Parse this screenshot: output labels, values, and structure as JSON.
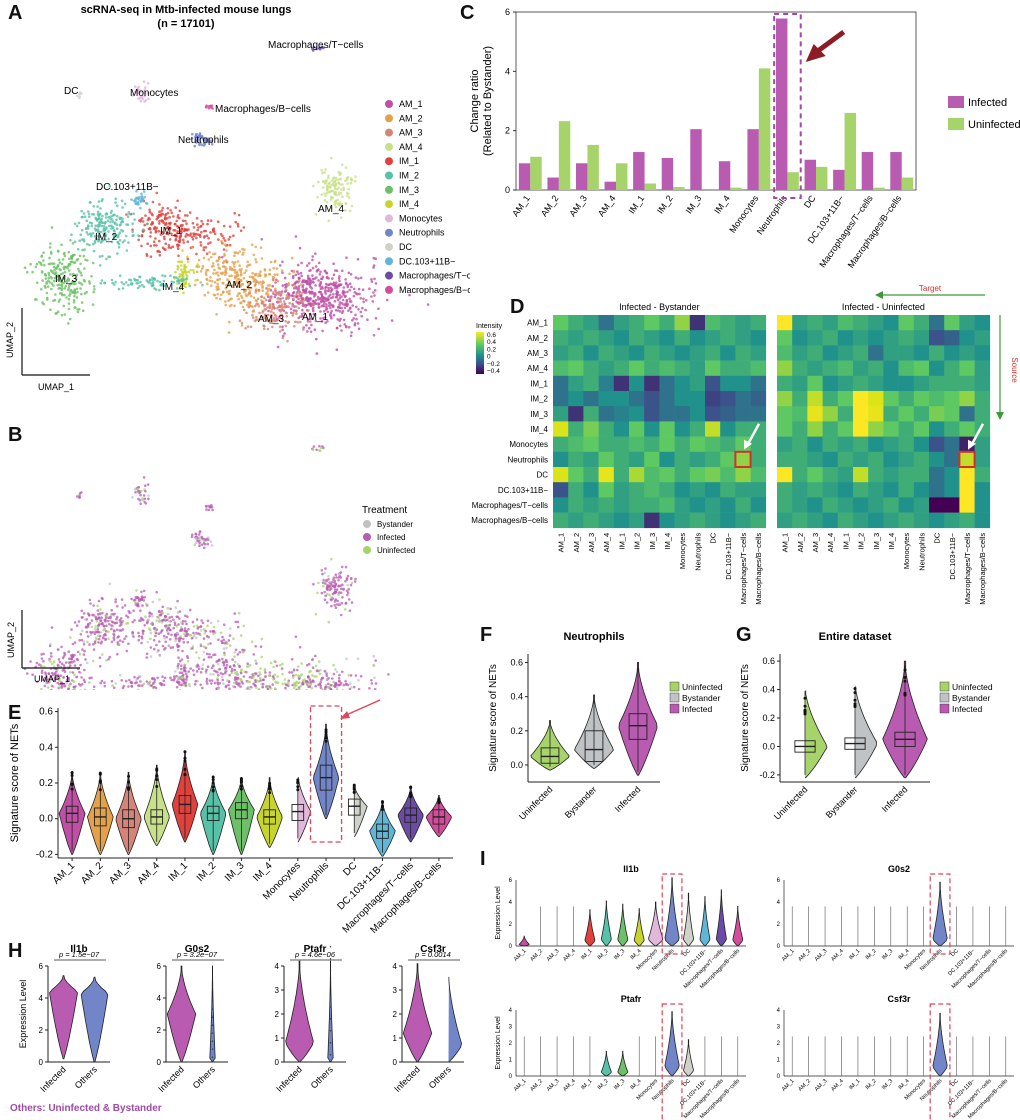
{
  "colors": {
    "AM_1": "#c04fa5",
    "AM_2": "#e5a14a",
    "AM_3": "#d68478",
    "AM_4": "#c9e08a",
    "IM_1": "#e0413c",
    "IM_2": "#57c2a7",
    "IM_3": "#6dc067",
    "IM_4": "#c6d42c",
    "Monocytes": "#e1b7db",
    "Neutrophils": "#7285c9",
    "DC": "#cfd2c9",
    "DC.103+11B-": "#5fb6d6",
    "Macrophages/T-cells": "#6b4ba6",
    "Macrophages/B-cells": "#d64c9c",
    "Infected": "#b85bb1",
    "Uninfected": "#a7d36b",
    "Bystander": "#bfc3c6",
    "highlight": "#e2455a",
    "arrow": "#8e1c26"
  },
  "panelA": {
    "label": "A",
    "title1": "scRNA-seq in Mtb-infected mouse lungs",
    "title2": "(n = 17101)",
    "xlabel": "UMAP_1",
    "ylabel": "UMAP_2",
    "cluster_labels": [
      "Macrophages/T−cells",
      "DC",
      "Monocytes",
      "Macrophages/B−cells",
      "Neutrophils",
      "DC.103+11B−",
      "AM_4",
      "IM_2",
      "IM_1",
      "IM_3",
      "IM_4",
      "AM_2",
      "AM_3",
      "AM_1"
    ],
    "legend": [
      "AM_1",
      "AM_2",
      "AM_3",
      "AM_4",
      "IM_1",
      "IM_2",
      "IM_3",
      "IM_4",
      "Monocytes",
      "Neutrophils",
      "DC",
      "DC.103+11B−",
      "Macrophages/T−cells",
      "Macrophages/B−cells"
    ]
  },
  "panelB": {
    "label": "B",
    "xlabel": "UMAP_1",
    "ylabel": "UMAP_2",
    "legend_title": "Treatment",
    "legend": [
      "Bystander",
      "Infected",
      "Uninfected"
    ]
  },
  "chart_data": [
    {
      "id": "C",
      "type": "bar",
      "ylabel": "Change ratio (Related to Bystander)",
      "ylabel1": "Change ratio",
      "ylabel2": "(Related to Bystander)",
      "ylim": [
        0,
        6
      ],
      "yticks": [
        0,
        2,
        4,
        6
      ],
      "categories": [
        "AM_1",
        "AM_2",
        "AM_3",
        "AM_4",
        "IM_1",
        "IM_2",
        "IM_3",
        "IM_4",
        "Monocytes",
        "Neutrophils",
        "DC",
        "DC.103+11B−",
        "Macrophages/T−cells",
        "Macrophages/B−cells"
      ],
      "series": [
        {
          "name": "Infected",
          "values": [
            0.9,
            0.42,
            0.9,
            0.28,
            1.28,
            1.08,
            2.05,
            0.97,
            2.05,
            5.78,
            1.02,
            0.68,
            1.28,
            1.28
          ]
        },
        {
          "name": "Uninfected",
          "values": [
            1.12,
            2.32,
            1.52,
            0.9,
            0.22,
            0.1,
            0.0,
            0.08,
            4.1,
            0.6,
            0.78,
            2.6,
            0.08,
            0.42
          ]
        }
      ],
      "highlight": "Neutrophils"
    },
    {
      "id": "D",
      "type": "heatmap",
      "subtitles": [
        "Infected - Bystander",
        "Infected - Uninfected"
      ],
      "legend_title": "Intensity",
      "legend_ticks": [
        "0.6",
        "0.4",
        "0.2",
        "0",
        "−0.2",
        "−0.4"
      ],
      "target_label": "Target",
      "source_label": "Source",
      "rows": [
        "AM_1",
        "AM_2",
        "AM_3",
        "AM_4",
        "IM_1",
        "IM_2",
        "IM_3",
        "IM_4",
        "Monocytes",
        "Neutrophils",
        "DC",
        "DC.103+11B−",
        "Macrophages/T−cells",
        "Macrophages/B−cells"
      ],
      "cols": [
        "AM_1",
        "AM_2",
        "AM_3",
        "AM_4",
        "IM_1",
        "IM_2",
        "IM_3",
        "IM_4",
        "Monocytes",
        "Neutrophils",
        "DC",
        "DC.103+11B−",
        "Macrophages/T−cells",
        "Macrophages/B−cells"
      ],
      "matrices": [
        [
          [
            0.2,
            0.1,
            0.05,
            -0.1,
            0.05,
            0.1,
            0.2,
            0.1,
            0.3,
            -0.3,
            0.15,
            0.1,
            0.05,
            0.1
          ],
          [
            0.1,
            0.05,
            0.1,
            0.05,
            0.0,
            0.1,
            0.05,
            0.0,
            0.1,
            0.0,
            0.05,
            0.1,
            0.05,
            0.0
          ],
          [
            0.05,
            0.1,
            0.0,
            0.1,
            0.05,
            0.0,
            0.1,
            0.05,
            0.0,
            0.05,
            0.1,
            0.0,
            0.1,
            0.05
          ],
          [
            0.15,
            0.2,
            0.1,
            0.05,
            0.1,
            0.2,
            0.1,
            0.15,
            0.1,
            0.05,
            0.2,
            0.1,
            0.1,
            0.15
          ],
          [
            -0.1,
            0.05,
            0.1,
            -0.05,
            -0.3,
            0.0,
            -0.3,
            -0.1,
            0.0,
            0.05,
            -0.2,
            0.0,
            0.0,
            -0.1
          ],
          [
            -0.1,
            0.0,
            -0.1,
            0.0,
            0.0,
            -0.1,
            -0.2,
            -0.1,
            0.0,
            0.0,
            -0.25,
            -0.2,
            -0.1,
            -0.15
          ],
          [
            0.05,
            -0.3,
            0.1,
            -0.1,
            -0.05,
            0.0,
            -0.2,
            -0.1,
            -0.1,
            0.0,
            -0.2,
            -0.15,
            -0.1,
            -0.1
          ],
          [
            0.45,
            0.1,
            0.25,
            0.1,
            0.0,
            0.2,
            0.0,
            0.2,
            0.0,
            0.1,
            0.4,
            0.0,
            0.1,
            0.1
          ],
          [
            0.1,
            0.15,
            0.2,
            0.1,
            0.1,
            0.15,
            0.1,
            0.2,
            0.1,
            0.2,
            0.15,
            0.1,
            0.2,
            0.1
          ],
          [
            0.0,
            0.1,
            0.05,
            0.2,
            0.1,
            0.05,
            0.2,
            0.0,
            0.1,
            0.05,
            0.1,
            0.2,
            0.3,
            0.1
          ],
          [
            0.45,
            0.2,
            0.1,
            0.5,
            0.1,
            0.35,
            0.15,
            0.2,
            0.1,
            0.2,
            0.25,
            0.15,
            0.3,
            0.15
          ],
          [
            -0.2,
            0.1,
            0.0,
            0.2,
            0.05,
            0.1,
            0.15,
            0.1,
            0.0,
            0.05,
            0.0,
            0.1,
            0.05,
            0.05
          ],
          [
            0.0,
            0.1,
            0.05,
            0.1,
            0.05,
            0.1,
            0.1,
            0.15,
            0.05,
            0.0,
            0.05,
            0.0,
            0.1,
            0.0
          ],
          [
            0.1,
            0.05,
            0.1,
            0.05,
            0.0,
            0.05,
            -0.3,
            0.0,
            0.05,
            0.1,
            0.05,
            0.0,
            0.05,
            0.1
          ]
        ],
        [
          [
            0.6,
            0.05,
            0.1,
            0.05,
            0.15,
            0.1,
            0.05,
            0.0,
            0.2,
            0.1,
            -0.1,
            0.2,
            0.05,
            0.0
          ],
          [
            0.2,
            0.0,
            0.05,
            0.1,
            0.0,
            0.05,
            0.0,
            0.05,
            0.1,
            0.05,
            -0.2,
            -0.15,
            0.0,
            0.05
          ],
          [
            0.15,
            0.05,
            0.1,
            0.0,
            0.05,
            0.1,
            -0.1,
            0.05,
            0.05,
            0.0,
            0.1,
            0.0,
            0.05,
            0.0
          ],
          [
            0.3,
            0.1,
            0.05,
            0.1,
            0.15,
            0.05,
            0.1,
            0.0,
            0.15,
            0.2,
            0.0,
            0.1,
            0.2,
            0.05
          ],
          [
            0.1,
            0.05,
            0.2,
            0.0,
            0.05,
            0.1,
            0.05,
            0.0,
            0.0,
            0.05,
            0.1,
            0.1,
            0.1,
            0.05
          ],
          [
            0.3,
            0.1,
            0.4,
            0.1,
            0.2,
            0.6,
            0.45,
            0.2,
            0.1,
            0.2,
            0.15,
            0.2,
            0.3,
            0.1
          ],
          [
            0.2,
            0.15,
            0.5,
            0.3,
            0.1,
            0.6,
            0.5,
            0.1,
            0.2,
            0.1,
            0.25,
            0.2,
            -0.1,
            0.1
          ],
          [
            0.2,
            0.1,
            0.3,
            0.1,
            0.2,
            0.6,
            0.3,
            0.2,
            0.1,
            0.2,
            0.0,
            0.1,
            0.2,
            0.1
          ],
          [
            0.05,
            0.1,
            0.0,
            0.1,
            0.05,
            0.1,
            0.0,
            0.05,
            0.1,
            0.0,
            -0.2,
            -0.1,
            -0.35,
            0.05
          ],
          [
            0.1,
            0.1,
            0.05,
            0.0,
            0.1,
            0.05,
            0.1,
            0.0,
            0.05,
            0.1,
            0.0,
            -0.1,
            0.4,
            0.05
          ],
          [
            0.6,
            0.1,
            0.2,
            0.1,
            0.05,
            0.4,
            0.1,
            0.05,
            0.1,
            0.1,
            -0.1,
            0.0,
            0.6,
            0.1
          ],
          [
            0.1,
            0.05,
            0.1,
            0.05,
            0.0,
            0.1,
            0.05,
            0.0,
            0.1,
            0.0,
            -0.1,
            0.0,
            0.6,
            0.0
          ],
          [
            0.1,
            0.05,
            0.0,
            0.1,
            0.05,
            0.0,
            0.05,
            0.1,
            0.0,
            0.05,
            -0.45,
            -0.45,
            0.6,
            0.0
          ],
          [
            0.05,
            0.1,
            0.05,
            0.0,
            0.1,
            0.05,
            0.0,
            0.05,
            0.1,
            0.05,
            0.0,
            0.05,
            0.1,
            0.0
          ]
        ]
      ],
      "highlight_cell": {
        "row": "Neutrophils",
        "col": "Macrophages/T−cells"
      }
    },
    {
      "id": "E",
      "type": "violin",
      "ylabel": "Signature score of NETs",
      "ylim": [
        -0.22,
        0.62
      ],
      "yticks": [
        -0.2,
        0.0,
        0.2,
        0.4,
        0.6
      ],
      "categories": [
        "AM_1",
        "AM_2",
        "AM_3",
        "AM_4",
        "IM_1",
        "IM_2",
        "IM_3",
        "IM_4",
        "Monocytes",
        "Neutrophils",
        "DC",
        "DC.103+11B−",
        "Macrophages/T−cells",
        "Macrophages/B−cells"
      ],
      "medians": [
        0.03,
        0.01,
        0.0,
        0.01,
        0.08,
        0.03,
        0.05,
        0.01,
        0.04,
        0.23,
        0.07,
        -0.07,
        0.02,
        0.01
      ],
      "q1": [
        -0.02,
        -0.04,
        -0.05,
        -0.03,
        0.03,
        -0.01,
        0.0,
        -0.03,
        -0.01,
        0.16,
        0.02,
        -0.11,
        -0.02,
        -0.03
      ],
      "q3": [
        0.07,
        0.06,
        0.05,
        0.05,
        0.13,
        0.07,
        0.09,
        0.05,
        0.08,
        0.3,
        0.11,
        -0.03,
        0.06,
        0.05
      ],
      "min": [
        -0.2,
        -0.2,
        -0.2,
        -0.15,
        -0.13,
        -0.2,
        -0.2,
        -0.16,
        -0.13,
        0.0,
        -0.1,
        -0.21,
        -0.13,
        -0.1
      ],
      "max": [
        0.26,
        0.26,
        0.26,
        0.3,
        0.38,
        0.24,
        0.23,
        0.23,
        0.25,
        0.53,
        0.19,
        0.1,
        0.18,
        0.13
      ],
      "highlight": "Neutrophils"
    },
    {
      "id": "F",
      "type": "violin",
      "title": "Neutrophils",
      "ylabel": "Signature score of NETs",
      "ylim": [
        -0.1,
        0.65
      ],
      "yticks": [
        0.0,
        0.2,
        0.4,
        0.6
      ],
      "categories": [
        "Uninfected",
        "Bystander",
        "Infected"
      ],
      "medians": [
        0.05,
        0.09,
        0.23
      ],
      "q1": [
        0.01,
        0.02,
        0.15
      ],
      "q3": [
        0.1,
        0.2,
        0.3
      ],
      "min": [
        -0.03,
        -0.02,
        -0.06
      ],
      "max": [
        0.26,
        0.41,
        0.6
      ],
      "legend": [
        "Uninfected",
        "Bystander",
        "Infected"
      ]
    },
    {
      "id": "G",
      "type": "violin",
      "title": "Entire dataset",
      "ylabel": "Signature score of NETs",
      "ylim": [
        -0.25,
        0.65
      ],
      "yticks": [
        -0.2,
        0.0,
        0.2,
        0.4,
        0.6
      ],
      "categories": [
        "Uninfected",
        "Bystander",
        "Infected"
      ],
      "medians": [
        0.0,
        0.02,
        0.05
      ],
      "q1": [
        -0.04,
        -0.02,
        0.0
      ],
      "q3": [
        0.04,
        0.06,
        0.1
      ],
      "min": [
        -0.22,
        -0.22,
        -0.22
      ],
      "max": [
        0.42,
        0.45,
        0.6
      ],
      "legend": [
        "Uninfected",
        "Bystander",
        "Infected"
      ]
    },
    {
      "id": "H",
      "type": "violin",
      "ylabel": "Expression Level",
      "panels": [
        {
          "title": "Il1b",
          "p": "p = 1.5e−07",
          "ylim": [
            0,
            6
          ],
          "yticks": [
            0,
            2,
            4,
            6
          ],
          "categories": [
            "Infected",
            "Others"
          ]
        },
        {
          "title": "G0s2",
          "p": "p = 3.2e−07",
          "ylim": [
            0,
            6
          ],
          "yticks": [
            0,
            2,
            4,
            6
          ],
          "categories": [
            "Infected",
            "Others"
          ]
        },
        {
          "title": "Ptafr",
          "p": "p = 4.6e−06",
          "ylim": [
            0,
            4
          ],
          "yticks": [
            0,
            1,
            2,
            3,
            4
          ],
          "categories": [
            "Infected",
            "Others"
          ]
        },
        {
          "title": "Csf3r",
          "p": "p = 0.0014",
          "ylim": [
            0,
            4
          ],
          "yticks": [
            0,
            1,
            2,
            3,
            4
          ],
          "categories": [
            "Infected",
            "Others"
          ]
        }
      ],
      "caption": "Others: Uninfected & Bystander"
    },
    {
      "id": "I",
      "type": "violin",
      "ylabel": "Expression Level",
      "categories": [
        "AM_1",
        "AM_2",
        "AM_3",
        "AM_4",
        "IM_1",
        "IM_2",
        "IM_3",
        "IM_4",
        "Monocytes",
        "Neutrophils",
        "DC",
        "DC.103+11B−",
        "Macrophages/T−cells",
        "Macrophages/B−cells"
      ],
      "panels": [
        {
          "title": "Il1b",
          "yticks": [
            0,
            2,
            4,
            6
          ],
          "ymax": 6,
          "heights": [
            0.9,
            0.2,
            0.3,
            0.3,
            3.3,
            4.1,
            3.8,
            3.4,
            4.0,
            6.2,
            4.8,
            4.5,
            5.1,
            3.6
          ]
        },
        {
          "title": "G0s2",
          "yticks": [
            0,
            2,
            4,
            6
          ],
          "ymax": 6,
          "heights": [
            0.0,
            0.0,
            0.0,
            0.0,
            0.0,
            0.0,
            0.0,
            0.0,
            0.0,
            5.8,
            0.0,
            0.0,
            0.0,
            0.0
          ]
        },
        {
          "title": "Ptafr",
          "yticks": [
            0,
            1,
            2,
            3,
            4
          ],
          "ymax": 4,
          "heights": [
            0.0,
            0.0,
            0.0,
            0.0,
            0.0,
            1.5,
            1.5,
            0.0,
            0.0,
            3.9,
            2.2,
            0.0,
            0.0,
            0.0
          ]
        },
        {
          "title": "Csf3r",
          "yticks": [
            0,
            1,
            2,
            3,
            4
          ],
          "ymax": 4,
          "heights": [
            0.0,
            0.0,
            0.0,
            0.0,
            0.0,
            0.0,
            0.0,
            0.0,
            0.0,
            3.8,
            0.0,
            0.0,
            0.0,
            0.0
          ]
        }
      ]
    }
  ]
}
